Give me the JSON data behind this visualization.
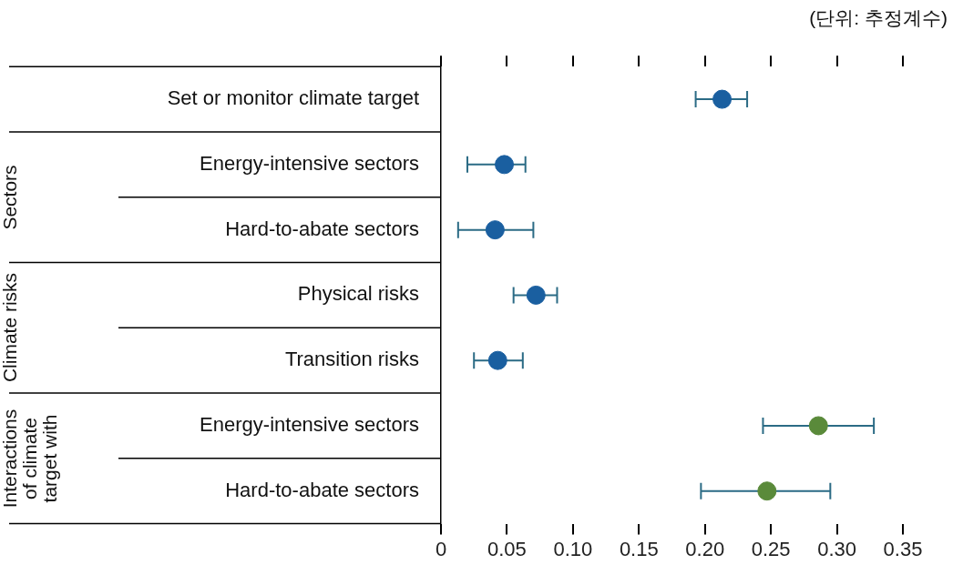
{
  "chart_data": {
    "type": "scatter",
    "categories": [
      "Set or monitor climate target",
      "Energy-intensive sectors",
      "Hard-to-abate sectors",
      "Physical risks",
      "Transition risks",
      "Energy-intensive sectors",
      "Hard-to-abate sectors"
    ],
    "values": [
      0.213,
      0.048,
      0.041,
      0.072,
      0.043,
      0.286,
      0.247
    ],
    "errors": [
      [
        0.193,
        0.232
      ],
      [
        0.02,
        0.064
      ],
      [
        0.013,
        0.07
      ],
      [
        0.055,
        0.088
      ],
      [
        0.025,
        0.062
      ],
      [
        0.244,
        0.328
      ],
      [
        0.197,
        0.295
      ]
    ],
    "colors": [
      "#1a5fa0",
      "#1a5fa0",
      "#1a5fa0",
      "#1a5fa0",
      "#1a5fa0",
      "#5a8a3a",
      "#5a8a3a"
    ],
    "marker": "circle",
    "xlim": [
      0,
      0.35
    ],
    "orientation": "horizontal",
    "xticks": [
      {
        "value": 0,
        "label": "0"
      },
      {
        "value": 0.05,
        "label": "0.05"
      },
      {
        "value": 0.1,
        "label": "0.10"
      },
      {
        "value": 0.15,
        "label": "0.15"
      },
      {
        "value": 0.2,
        "label": "0.20"
      },
      {
        "value": 0.25,
        "label": "0.25"
      },
      {
        "value": 0.3,
        "label": "0.30"
      },
      {
        "value": 0.35,
        "label": "0.35"
      }
    ],
    "annotations": [
      "(단위: 추정계수)",
      "Sectors",
      "Climate risks",
      "Interactions of climate target with"
    ]
  }
}
